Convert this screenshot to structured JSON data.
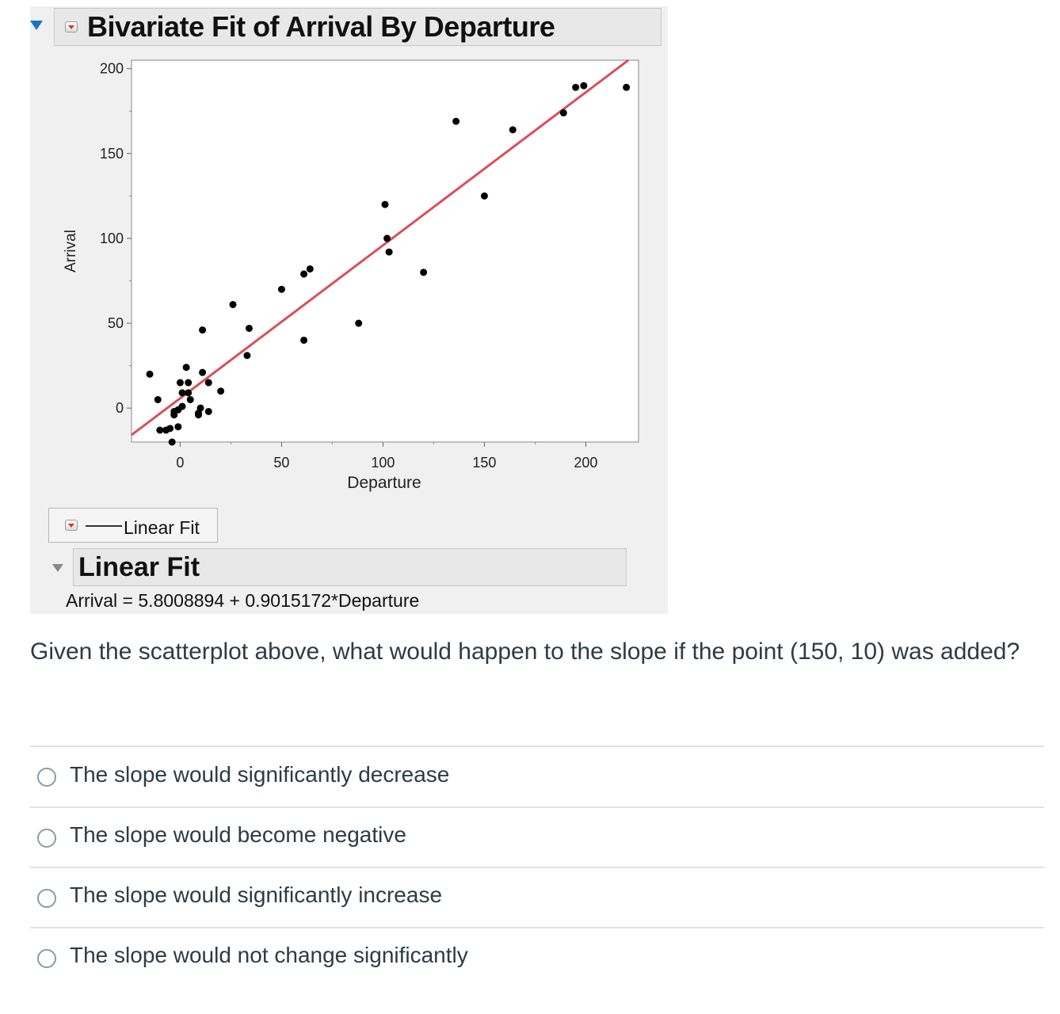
{
  "report": {
    "title": "Bivariate Fit of Arrival By Departure",
    "legend_label": "Linear Fit",
    "fit_header": "Linear Fit",
    "equation": "Arrival = 5.8008894 + 0.9015172*Departure"
  },
  "chart_data": {
    "type": "scatter",
    "xlabel": "Departure",
    "ylabel": "Arrival",
    "xlim": [
      -24,
      226
    ],
    "ylim": [
      -20,
      205
    ],
    "xticks": [
      0,
      50,
      100,
      150,
      200
    ],
    "yticks": [
      0,
      50,
      100,
      150,
      200
    ],
    "grid": false,
    "series": [
      {
        "x": [
          -15,
          -11,
          -10,
          -7,
          -5,
          -4,
          -3,
          -3,
          -1,
          -1,
          0,
          1,
          1,
          3,
          4,
          4,
          5,
          9,
          9,
          10,
          11,
          11,
          14,
          14,
          20,
          26,
          33,
          34,
          50,
          61,
          61,
          64,
          88,
          101,
          102,
          103,
          120,
          136,
          150,
          164,
          189,
          195,
          199,
          220
        ],
        "y": [
          20,
          5,
          -13,
          -13,
          -12,
          -20,
          -4,
          -2,
          -11,
          -1,
          15,
          9,
          1,
          24,
          15,
          9,
          5,
          -4,
          -3,
          0,
          46,
          21,
          15,
          -2,
          10,
          61,
          31,
          47,
          70,
          40,
          79,
          82,
          50,
          120,
          100,
          92,
          80,
          169,
          125,
          164,
          174,
          189,
          190,
          189
        ]
      }
    ],
    "fit_line": {
      "name": "Linear Fit",
      "intercept": 5.8008894,
      "slope": 0.9015172
    },
    "colors": {
      "points": "#000000",
      "fit_line": "#d94f5c"
    }
  },
  "question": {
    "text": "Given the scatterplot above, what would happen to the slope if the point (150, 10) was added?",
    "options": [
      {
        "label": "The slope would significantly decrease",
        "selected": false
      },
      {
        "label": "The slope would become negative",
        "selected": false
      },
      {
        "label": "The slope would significantly increase",
        "selected": false
      },
      {
        "label": "The slope would not change significantly",
        "selected": false
      }
    ]
  }
}
